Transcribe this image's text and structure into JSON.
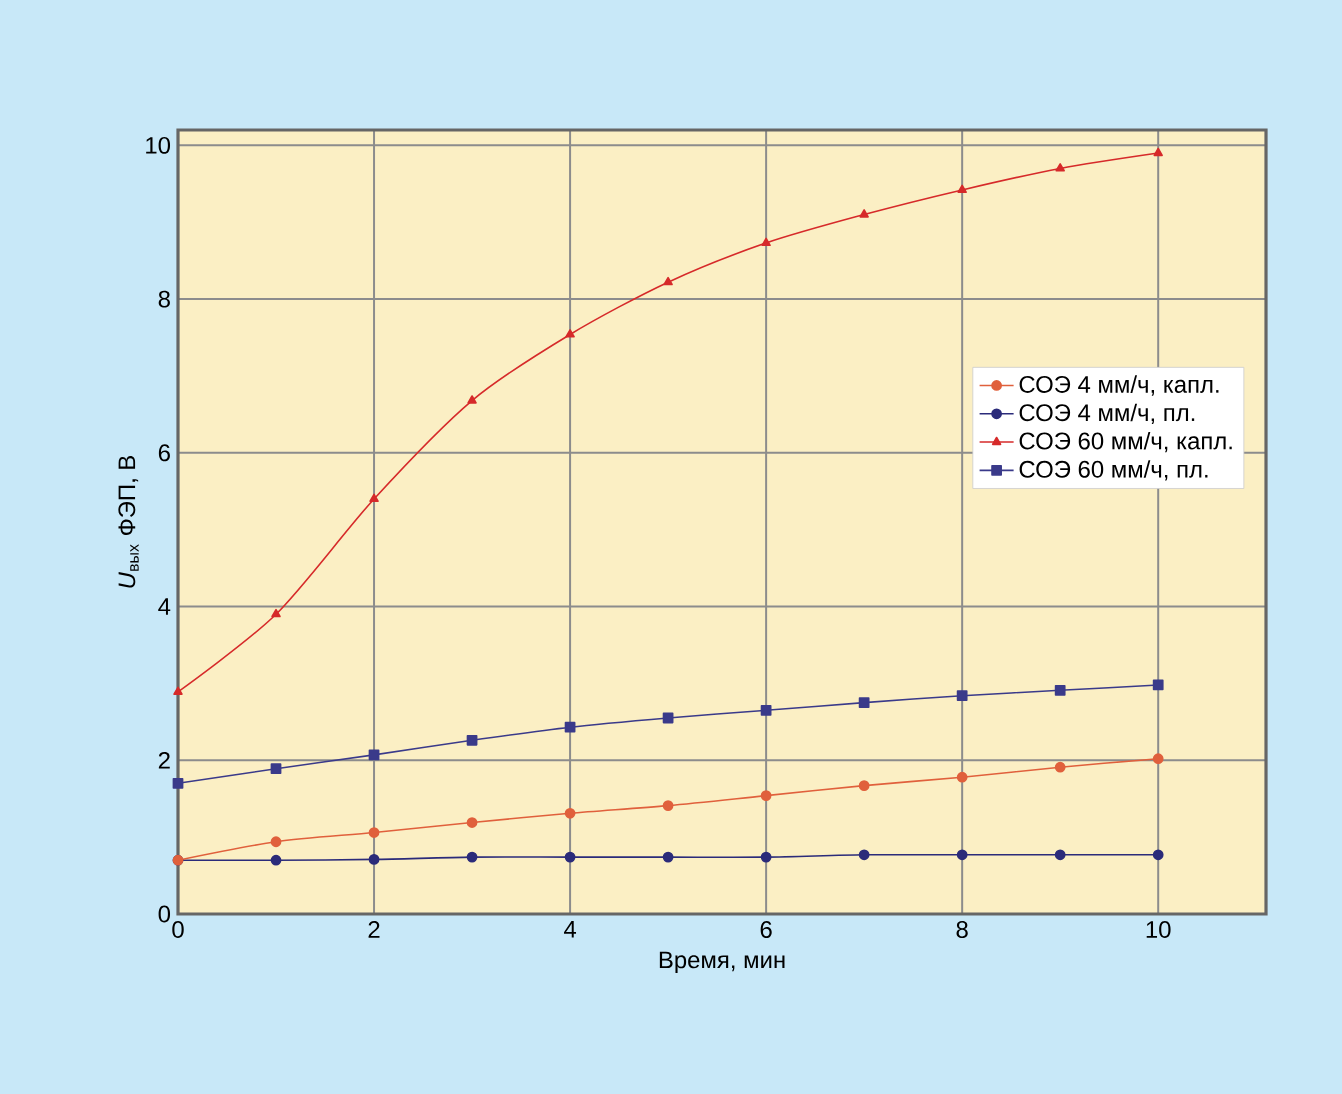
{
  "chart_data": {
    "type": "line",
    "xlabel": "Время, мин",
    "ylabel": "*U*$_{вых}$ ФЭП, В",
    "x": [
      0,
      1,
      2,
      3,
      4,
      5,
      6,
      7,
      8,
      9,
      10
    ],
    "series": [
      {
        "name": "СОЭ 4 мм/ч, капл.",
        "color": "#e0603c",
        "marker": "circle",
        "values": [
          0.7,
          0.94,
          1.06,
          1.19,
          1.31,
          1.41,
          1.54,
          1.67,
          1.78,
          1.91,
          2.02
        ]
      },
      {
        "name": "СОЭ 4 мм/ч, пл.",
        "color": "#2b2b7a",
        "marker": "circle",
        "values": [
          0.7,
          0.7,
          0.71,
          0.74,
          0.74,
          0.74,
          0.74,
          0.77,
          0.77,
          0.77,
          0.77
        ]
      },
      {
        "name": "СОЭ 60 мм/ч, капл.",
        "color": "#d62a2a",
        "marker": "triangle",
        "values": [
          2.89,
          3.9,
          5.4,
          6.68,
          7.54,
          8.22,
          8.73,
          9.1,
          9.42,
          9.7,
          9.9
        ]
      },
      {
        "name": "СОЭ 60 мм/ч, пл.",
        "color": "#3a3a8a",
        "marker": "square",
        "values": [
          1.7,
          1.89,
          2.07,
          2.26,
          2.43,
          2.55,
          2.65,
          2.75,
          2.84,
          2.91,
          2.98
        ]
      }
    ],
    "xlim": [
      0,
      11.1
    ],
    "ylim": [
      0,
      10.2
    ],
    "xticks": [
      0,
      2,
      4,
      6,
      8,
      10
    ],
    "yticks": [
      0,
      2,
      4,
      6,
      8,
      10
    ],
    "grid": true,
    "legend": "right"
  }
}
